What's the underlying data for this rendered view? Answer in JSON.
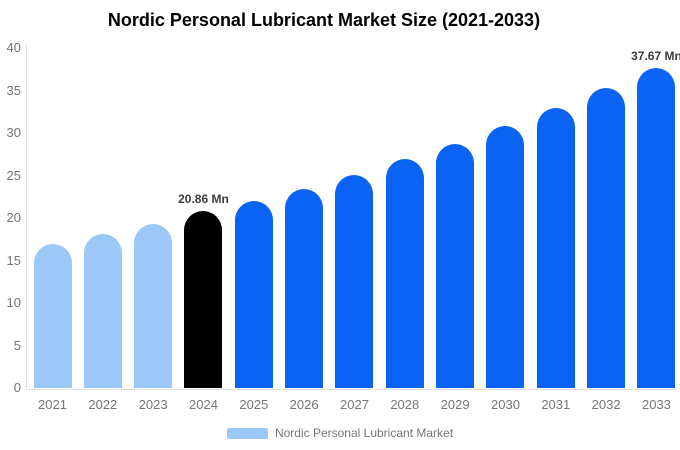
{
  "title": "Nordic Personal Lubricant Market Size (2021-2033)",
  "chart_data": {
    "type": "bar",
    "title": "Nordic Personal Lubricant Market Size (2021-2033)",
    "xlabel": "",
    "ylabel": "",
    "ylim": [
      0,
      40
    ],
    "yticks": [
      0,
      5,
      10,
      15,
      20,
      25,
      30,
      35,
      40
    ],
    "grid": false,
    "legend_position": "bottom",
    "categories": [
      "2021",
      "2022",
      "2023",
      "2024",
      "2025",
      "2026",
      "2027",
      "2028",
      "2029",
      "2030",
      "2031",
      "2032",
      "2033"
    ],
    "series": [
      {
        "name": "Nordic Personal Lubricant Market",
        "values": [
          16.9,
          18.1,
          19.3,
          20.86,
          22.0,
          23.4,
          25.1,
          26.9,
          28.7,
          30.8,
          32.9,
          35.3,
          37.67
        ]
      }
    ],
    "point_labels": [
      "",
      "",
      "",
      "20.86 Mn",
      "",
      "",
      "",
      "",
      "",
      "",
      "",
      "",
      "37.67 Mn"
    ],
    "point_colors": [
      "#9cc8f7",
      "#9cc8f7",
      "#9cc8f7",
      "#000000",
      "#0b63f3",
      "#0b63f3",
      "#0b63f3",
      "#0b63f3",
      "#0b63f3",
      "#0b63f3",
      "#0b63f3",
      "#0b63f3",
      "#0b63f3"
    ]
  },
  "colors": {
    "historical_bar": "#9cc8f7",
    "base_year_bar": "#000000",
    "forecast_bar": "#0b63f3",
    "axis_line": "#e0e0e0",
    "tick_text": "#757575",
    "label_text": "#3b3b3b"
  },
  "legend": {
    "label": "Nordic Personal Lubricant Market",
    "swatch_color": "#9cc8f7"
  }
}
